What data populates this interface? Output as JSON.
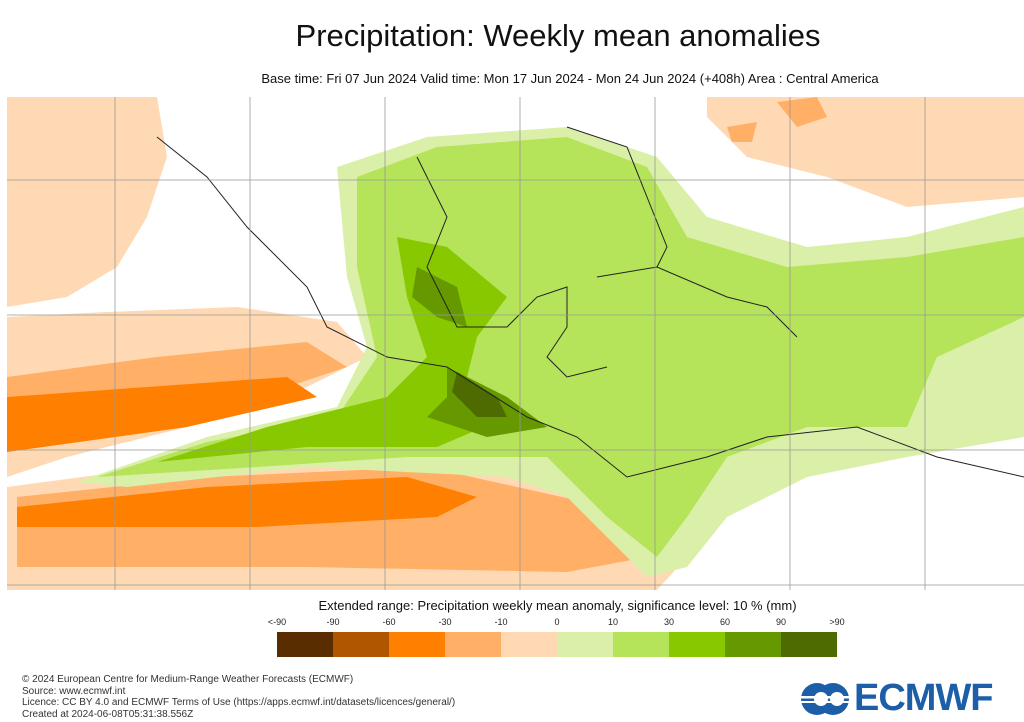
{
  "title": "Precipitation: Weekly mean anomalies",
  "subtitle": "Base time: Fri 07 Jun 2024 Valid time: Mon 17 Jun 2024 - Mon 24 Jun 2024 (+408h) Area : Central America",
  "legend": {
    "title": "Extended range: Precipitation weekly mean anomaly, significance level: 10 % (mm)",
    "labels": [
      "<-90",
      "-90",
      "-60",
      "-30",
      "-10",
      "0",
      "10",
      "30",
      "60",
      "90",
      ">90"
    ],
    "colors": [
      "#5a2d00",
      "#b05600",
      "#ff8000",
      "#ffb066",
      "#ffd9b3",
      "#daf0a8",
      "#b5e35a",
      "#88c800",
      "#669900",
      "#4d6b00"
    ]
  },
  "footer": {
    "copyright": "© 2024 European Centre for Medium-Range Weather Forecasts (ECMWF)",
    "source": "Source: www.ecmwf.int",
    "licence": "Licence: CC BY 4.0 and ECMWF Terms of Use (https://apps.ecmwf.int/datasets/licences/general/)",
    "created": "Created at 2024-06-08T05:31:38.556Z"
  },
  "logo": {
    "text": "ECMWF"
  }
}
